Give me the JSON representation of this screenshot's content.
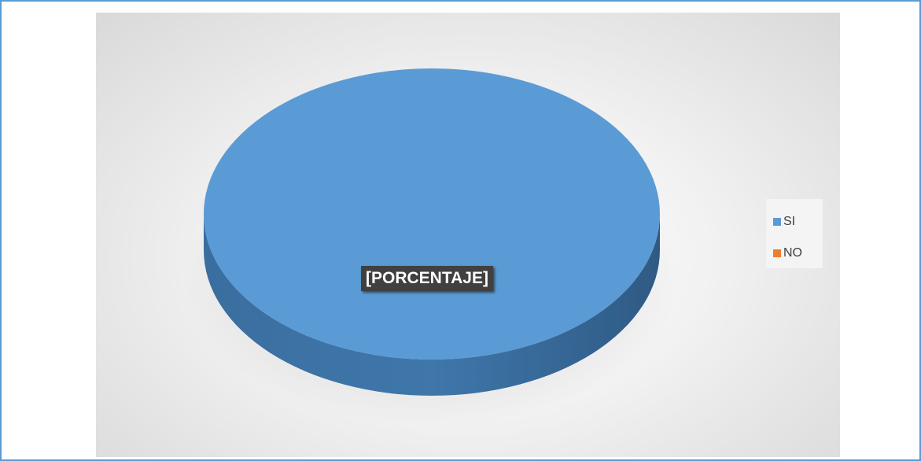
{
  "chart_data": {
    "type": "pie",
    "style": "3d",
    "slices": [
      {
        "label": "SI",
        "value": 100,
        "color": "#5b9bd5"
      },
      {
        "label": "NO",
        "value": 0,
        "color": "#ed7d31"
      }
    ],
    "data_label": "[PORCENTAJE]",
    "legend_position": "right",
    "legend": [
      "SI",
      "NO"
    ]
  }
}
